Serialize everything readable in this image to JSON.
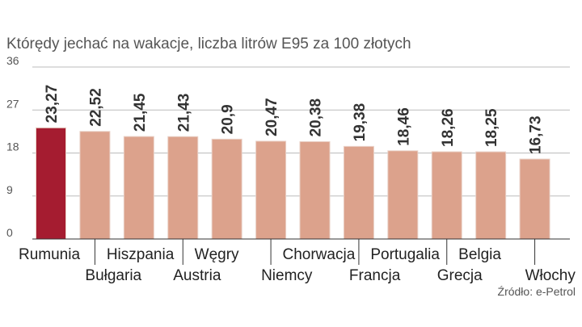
{
  "chart_data": {
    "type": "bar",
    "title": "Którędy jechać na wakacje, liczba litrów E95 za 100 złotych",
    "categories": [
      "Rumunia",
      "Bułgaria",
      "Hiszpania",
      "Austria",
      "Węgry",
      "Niemcy",
      "Chorwacja",
      "Francja",
      "Portugalia",
      "Grecja",
      "Belgia",
      "Włochy"
    ],
    "values": [
      23.27,
      22.52,
      21.45,
      21.43,
      20.9,
      20.47,
      20.38,
      19.38,
      18.46,
      18.26,
      18.25,
      16.73
    ],
    "value_labels": [
      "23,27",
      "22,52",
      "21,45",
      "21,43",
      "20,9",
      "20,47",
      "20,38",
      "19,38",
      "18,46",
      "18,26",
      "18,25",
      "16,73"
    ],
    "yticks": [
      0,
      9,
      18,
      27,
      36
    ],
    "ylim": [
      0,
      36
    ],
    "xlabel": "",
    "ylabel": "",
    "source": "Źródło: e-Petrol",
    "grid": true,
    "colors": {
      "highlight": "#a51c30",
      "bar": "#dca28c",
      "grid": "#bbbbbb",
      "axis": "#333333"
    },
    "highlight_index": 0
  }
}
